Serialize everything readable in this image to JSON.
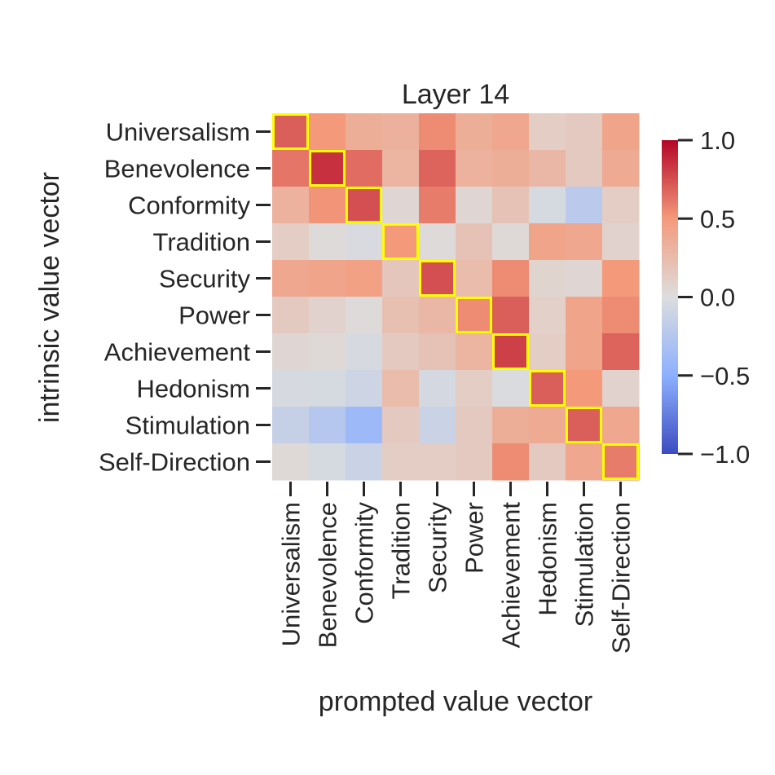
{
  "chart_data": {
    "type": "heatmap",
    "title": "Layer 14",
    "xlabel": "prompted value vector",
    "ylabel": "intrinsic value vector",
    "x_categories": [
      "Universalism",
      "Benevolence",
      "Conformity",
      "Tradition",
      "Security",
      "Power",
      "Achievement",
      "Hedonism",
      "Stimulation",
      "Self-Direction"
    ],
    "y_categories": [
      "Universalism",
      "Benevolence",
      "Conformity",
      "Tradition",
      "Security",
      "Power",
      "Achievement",
      "Hedonism",
      "Stimulation",
      "Self-Direction"
    ],
    "values": [
      [
        0.7,
        0.5,
        0.35,
        0.33,
        0.55,
        0.35,
        0.4,
        0.12,
        0.15,
        0.42
      ],
      [
        0.62,
        0.85,
        0.65,
        0.3,
        0.68,
        0.32,
        0.35,
        0.28,
        0.15,
        0.38
      ],
      [
        0.32,
        0.52,
        0.75,
        0.05,
        0.6,
        0.05,
        0.2,
        -0.05,
        -0.22,
        0.12
      ],
      [
        0.12,
        0.02,
        -0.03,
        0.5,
        0.02,
        0.2,
        0.03,
        0.42,
        0.4,
        0.08
      ],
      [
        0.4,
        0.42,
        0.45,
        0.17,
        0.75,
        0.25,
        0.55,
        0.07,
        0.05,
        0.5
      ],
      [
        0.15,
        0.08,
        0.02,
        0.22,
        0.28,
        0.55,
        0.7,
        0.1,
        0.42,
        0.55
      ],
      [
        0.05,
        0.03,
        -0.04,
        0.15,
        0.2,
        0.3,
        0.8,
        0.12,
        0.42,
        0.68
      ],
      [
        -0.04,
        -0.05,
        -0.1,
        0.25,
        -0.06,
        0.12,
        -0.02,
        0.7,
        0.5,
        0.08
      ],
      [
        -0.15,
        -0.25,
        -0.4,
        0.15,
        -0.12,
        0.15,
        0.35,
        0.38,
        0.7,
        0.4
      ],
      [
        0.03,
        -0.05,
        -0.12,
        0.12,
        0.12,
        0.15,
        0.55,
        0.15,
        0.4,
        0.6
      ]
    ],
    "vmin": -1.0,
    "vmax": 1.0,
    "colormap": "coolwarm",
    "highlight_color": "#ffff00",
    "highlight": "diagonal",
    "colorbar_ticks": [
      {
        "value": 1.0,
        "label": "1.0"
      },
      {
        "value": 0.5,
        "label": "0.5"
      },
      {
        "value": 0.0,
        "label": "0.0"
      },
      {
        "value": -0.5,
        "label": "−0.5"
      },
      {
        "value": -1.0,
        "label": "−1.0"
      }
    ]
  }
}
